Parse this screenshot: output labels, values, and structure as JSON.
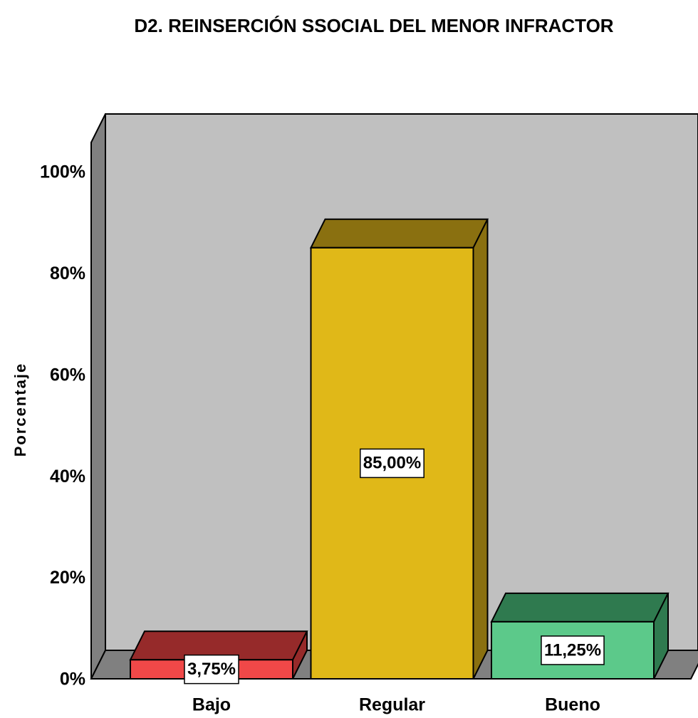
{
  "chart_data": {
    "type": "bar",
    "title": "D2. REINSERCIÓN SSOCIAL DEL MENOR INFRACTOR",
    "y_label": "Porcentaje",
    "categories": [
      "Bajo",
      "Regular",
      "Bueno"
    ],
    "values": [
      3.75,
      85,
      11.25
    ],
    "value_labels": [
      "3,75%",
      "85,00%",
      "11,25%"
    ],
    "colors": [
      "#f04848",
      "#e0b818",
      "#5cc98a"
    ],
    "side_colors": [
      "#962a2a",
      "#8a7010",
      "#2f7a4f"
    ],
    "ylim": [
      0,
      100
    ],
    "yticks": [
      {
        "value": 0,
        "label": "0%"
      },
      {
        "value": 20,
        "label": "20%"
      },
      {
        "value": 40,
        "label": "40%"
      },
      {
        "value": 60,
        "label": "60%"
      },
      {
        "value": 80,
        "label": "80%"
      },
      {
        "value": 100,
        "label": "100%"
      }
    ]
  }
}
